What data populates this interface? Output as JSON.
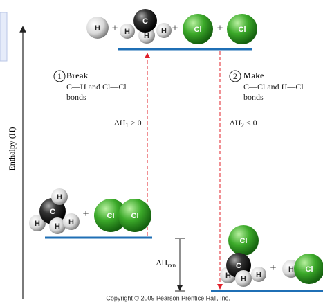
{
  "axis_label": "Enthalpy (H)",
  "top_state": {
    "labels": [
      "H",
      "+",
      "H",
      "C",
      "H",
      "H",
      "+",
      "Cl",
      "+",
      "Cl"
    ]
  },
  "steps": [
    {
      "number": "1",
      "action": "Break",
      "detail": "C—H and Cl—Cl",
      "detail2": "bonds",
      "delta": {
        "symbol": "ΔH",
        "subscript": "1",
        "relation": " > 0"
      }
    },
    {
      "number": "2",
      "action": "Make",
      "detail": "C—Cl and H—Cl",
      "detail2": "bonds",
      "delta": {
        "symbol": "ΔH",
        "subscript": "2",
        "relation": " < 0"
      }
    }
  ],
  "bottom_left": {
    "labels": [
      "H",
      "C",
      "H",
      "H",
      "H",
      "+",
      "Cl",
      "Cl"
    ]
  },
  "delta_rxn": {
    "symbol": "ΔH",
    "subscript": "rxn"
  },
  "bottom_right": {
    "labels": [
      "Cl",
      "C",
      "H",
      "H",
      "H",
      "+",
      "H",
      "Cl"
    ]
  },
  "copyright": "Copyright © 2009 Pearson Prentice Hall, Inc."
}
